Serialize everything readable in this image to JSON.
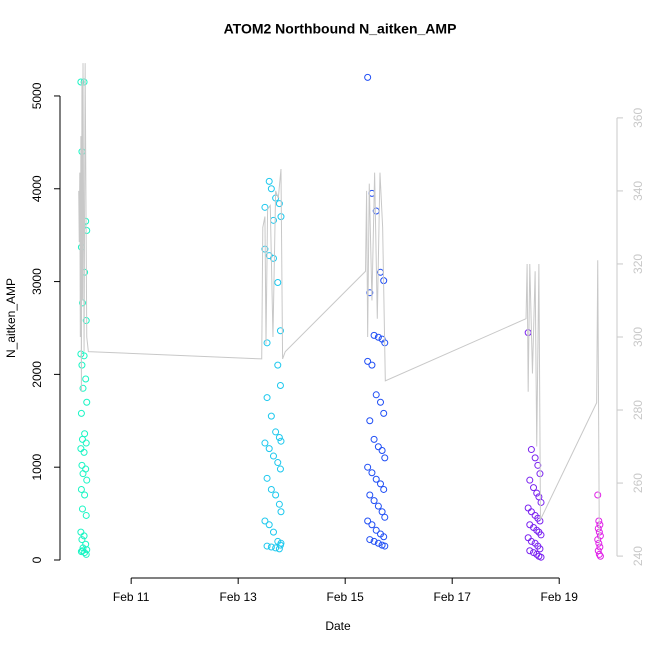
{
  "chart_data": {
    "type": "scatter",
    "title": "ATOM2 Northbound N_aitken_AMP",
    "xlabel": "Date",
    "ylabel": "N_aitken_AMP",
    "xlim": [
      9.67,
      20.08
    ],
    "xticks": [
      {
        "value": 11,
        "label": "Feb 11"
      },
      {
        "value": 13,
        "label": "Feb 13"
      },
      {
        "value": 15,
        "label": "Feb 15"
      },
      {
        "value": 17,
        "label": "Feb 17"
      },
      {
        "value": 19,
        "label": "Feb 19"
      }
    ],
    "ylim": [
      -194,
      5409
    ],
    "yticks": [
      0,
      1000,
      2000,
      3000,
      4000,
      5000
    ],
    "y2lim": [
      234,
      376.4
    ],
    "y2ticks": [
      240,
      260,
      280,
      300,
      320,
      340,
      360
    ],
    "series": [
      {
        "color": "#19f5c4",
        "x": [
          10.06,
          10.12,
          10.08,
          10.15,
          10.1,
          10.17,
          10.07,
          10.13,
          10.09,
          10.16,
          10.06,
          10.12,
          10.08,
          10.15,
          10.1,
          10.17,
          10.07,
          10.13,
          10.09,
          10.16,
          10.06,
          10.12,
          10.08,
          10.15,
          10.1,
          10.17,
          10.07,
          10.13,
          10.09,
          10.16,
          10.06,
          10.12,
          10.08,
          10.15,
          10.1,
          10.17,
          10.07,
          10.13,
          10.09,
          10.16
        ],
        "values": [
          5150,
          5150,
          4400,
          3650,
          3600,
          3550,
          3370,
          3100,
          2770,
          2580,
          2220,
          2200,
          2100,
          1950,
          1850,
          1700,
          1580,
          1360,
          1300,
          1260,
          1200,
          1160,
          1020,
          980,
          930,
          860,
          760,
          700,
          550,
          480,
          300,
          260,
          220,
          170,
          130,
          110,
          90,
          80,
          100,
          60
        ]
      },
      {
        "color": "#1cc8ee",
        "x": [
          13.5,
          13.58,
          13.66,
          13.74,
          13.79,
          13.54,
          13.62,
          13.7,
          13.77,
          13.8,
          13.5,
          13.58,
          13.66,
          13.74,
          13.79,
          13.54,
          13.62,
          13.7,
          13.77,
          13.8,
          13.5,
          13.58,
          13.66,
          13.74,
          13.79,
          13.54,
          13.62,
          13.7,
          13.77,
          13.8,
          13.5,
          13.58,
          13.66,
          13.74,
          13.79,
          13.54,
          13.62,
          13.7,
          13.77,
          13.8
        ],
        "values": [
          3800,
          4080,
          3660,
          2990,
          2470,
          2340,
          4000,
          3900,
          3840,
          3700,
          3350,
          3280,
          3250,
          2100,
          1880,
          1750,
          1550,
          1380,
          1320,
          1280,
          1260,
          1200,
          1120,
          1050,
          980,
          880,
          760,
          700,
          600,
          520,
          420,
          380,
          300,
          200,
          160,
          150,
          140,
          130,
          120,
          180
        ]
      },
      {
        "color": "#1f4ef5",
        "x": [
          15.42,
          15.5,
          15.58,
          15.66,
          15.72,
          15.46,
          15.54,
          15.62,
          15.69,
          15.74,
          15.42,
          15.5,
          15.58,
          15.66,
          15.72,
          15.46,
          15.54,
          15.62,
          15.69,
          15.74,
          15.42,
          15.5,
          15.58,
          15.66,
          15.72,
          15.46,
          15.54,
          15.62,
          15.69,
          15.74,
          15.42,
          15.5,
          15.58,
          15.66,
          15.72,
          15.46,
          15.54,
          15.62,
          15.69,
          15.74
        ],
        "values": [
          5200,
          3950,
          3760,
          3100,
          3010,
          2880,
          2420,
          2400,
          2380,
          2340,
          2140,
          2100,
          1780,
          1700,
          1580,
          1500,
          1300,
          1220,
          1180,
          1100,
          1000,
          940,
          870,
          820,
          760,
          700,
          640,
          580,
          520,
          460,
          420,
          380,
          320,
          280,
          250,
          220,
          200,
          180,
          160,
          150
        ]
      },
      {
        "color": "#7a22f0",
        "x": [
          18.42,
          18.48,
          18.55,
          18.6,
          18.64,
          18.45,
          18.52,
          18.58,
          18.62,
          18.66,
          18.42,
          18.48,
          18.55,
          18.6,
          18.64,
          18.45,
          18.52,
          18.58,
          18.62,
          18.66,
          18.42,
          18.48,
          18.55,
          18.6,
          18.64,
          18.45,
          18.52,
          18.58,
          18.62,
          18.66
        ],
        "values": [
          2450,
          1190,
          1100,
          1020,
          930,
          860,
          780,
          720,
          680,
          620,
          560,
          520,
          480,
          450,
          420,
          380,
          350,
          320,
          300,
          270,
          240,
          200,
          180,
          150,
          120,
          100,
          80,
          60,
          40,
          30
        ]
      },
      {
        "color": "#e020e8",
        "x": [
          19.72,
          19.74,
          19.76,
          19.73,
          19.75,
          19.77,
          19.72,
          19.74,
          19.76,
          19.73,
          19.75,
          19.77
        ],
        "values": [
          700,
          420,
          380,
          340,
          300,
          260,
          220,
          180,
          140,
          100,
          60,
          40
        ]
      },
      {
        "type": "line",
        "axis": "y2",
        "color": "#c8c8c8",
        "x": [
          10.02,
          10.03,
          10.04,
          10.05,
          10.06,
          10.07,
          10.08,
          10.09,
          10.1,
          10.12,
          10.14,
          10.17,
          10.2,
          13.44,
          13.46,
          13.5,
          13.52,
          13.55,
          13.6,
          13.65,
          13.7,
          13.75,
          13.8,
          13.83,
          13.88,
          15.38,
          15.4,
          15.42,
          15.45,
          15.5,
          15.55,
          15.6,
          15.65,
          15.7,
          15.75,
          18.38,
          18.4,
          18.42,
          18.45,
          18.5,
          18.55,
          18.58,
          18.62,
          18.65,
          19.7,
          19.72,
          19.75
        ],
        "values": [
          340,
          326,
          345,
          300,
          355,
          285,
          370,
          310,
          375,
          296,
          375,
          300,
          296,
          294,
          330,
          333,
          298,
          335,
          336,
          300,
          340,
          338,
          346,
          294,
          296,
          318,
          340,
          300,
          342,
          310,
          345,
          305,
          345,
          330,
          288,
          305,
          320,
          285,
          320,
          290,
          318,
          270,
          320,
          250,
          282,
          321,
          243
        ]
      }
    ]
  }
}
